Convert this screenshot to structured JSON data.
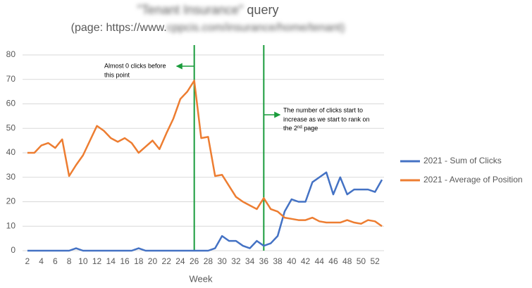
{
  "chart_data": {
    "type": "line",
    "title": {
      "blurred": "\"Tenant Insurance\"",
      "text": " query"
    },
    "subtitle": {
      "start": "(page: https://www.",
      "blurred": "cppcis",
      "end": ".com/insurance/home/tenant)"
    },
    "x_label": "Week",
    "x": [
      2,
      3,
      4,
      5,
      6,
      7,
      8,
      9,
      10,
      11,
      12,
      13,
      14,
      15,
      16,
      17,
      18,
      19,
      20,
      21,
      22,
      23,
      24,
      25,
      26,
      27,
      28,
      29,
      30,
      31,
      32,
      33,
      34,
      35,
      36,
      37,
      38,
      39,
      40,
      41,
      42,
      43,
      44,
      45,
      46,
      47,
      48,
      49,
      50,
      51,
      52,
      53
    ],
    "series": [
      {
        "name": "2021 - Sum of Clicks",
        "color": "#4472c4",
        "values": [
          0,
          0,
          0,
          0,
          0,
          0,
          0,
          1,
          0,
          0,
          0,
          0,
          0,
          0,
          0,
          0,
          1,
          0,
          0,
          0,
          0,
          0,
          0,
          0,
          0,
          0,
          0,
          1,
          6,
          4,
          4,
          2,
          1,
          4,
          2,
          3,
          6,
          16,
          21,
          20,
          20,
          28,
          30,
          32,
          23,
          30,
          23,
          25,
          25,
          25,
          24,
          29
        ]
      },
      {
        "name": "2021 - Average of Position",
        "color": "#ed7d31",
        "values": [
          40,
          40,
          43,
          44,
          42,
          45.5,
          30.5,
          35,
          39,
          45,
          51,
          49,
          46,
          44.5,
          46,
          44,
          40,
          42.5,
          45,
          41.5,
          48,
          54,
          62,
          65,
          69.5,
          46,
          46.5,
          30.5,
          31,
          26.5,
          22,
          20,
          18.5,
          17,
          21.5,
          17,
          16,
          13.5,
          13,
          12.5,
          12.5,
          13.5,
          12,
          11.5,
          11.5,
          11.5,
          12.5,
          11.5,
          11,
          12.5,
          12,
          10
        ]
      }
    ],
    "xlim": [
      1.3,
      53.3
    ],
    "xticks": [
      2,
      4,
      6,
      8,
      10,
      12,
      14,
      16,
      18,
      20,
      22,
      24,
      26,
      28,
      30,
      32,
      34,
      36,
      38,
      40,
      42,
      44,
      46,
      48,
      50,
      52
    ],
    "ylim": [
      0,
      80
    ],
    "yticks": [
      0,
      10,
      20,
      30,
      40,
      50,
      60,
      70,
      80
    ],
    "grid": true,
    "legend": "right",
    "annotations": [
      {
        "x": 26,
        "color": "#1a9c3c",
        "lines": [
          "Almost 0 clicks before",
          "this point"
        ]
      },
      {
        "x": 36,
        "color": "#1a9c3c",
        "lines": [
          "The number of clicks start to",
          "increase as we start to rank on"
        ],
        "last": {
          "start": "the 2",
          "sup": "nd",
          "end": " page"
        }
      }
    ]
  }
}
